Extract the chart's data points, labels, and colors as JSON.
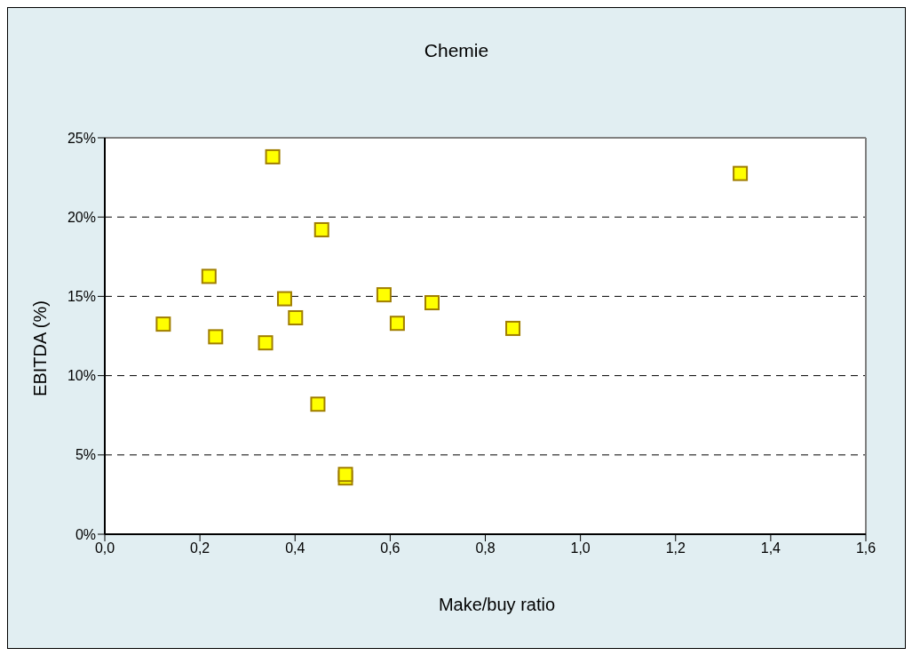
{
  "chart_data": {
    "type": "scatter",
    "title": "Chemie",
    "xlabel": "Make/buy ratio",
    "ylabel": "EBITDA (%)",
    "series": [
      {
        "color": "#ffff00",
        "x": [
          0.123,
          0.219,
          0.233,
          0.338,
          0.353,
          0.378,
          0.401,
          0.448,
          0.456,
          0.506,
          0.506,
          0.587,
          0.615,
          0.688,
          0.858,
          1.336
        ],
        "values": [
          13.25,
          16.26,
          12.45,
          12.07,
          23.8,
          14.85,
          13.65,
          8.2,
          19.2,
          3.55,
          3.77,
          15.1,
          13.3,
          14.6,
          12.98,
          22.75
        ]
      }
    ],
    "xlim": [
      0,
      1.6
    ],
    "xticks": [
      {
        "value": 0,
        "label": "0,0"
      },
      {
        "value": 0.2,
        "label": "0,2"
      },
      {
        "value": 0.4,
        "label": "0,4"
      },
      {
        "value": 0.6,
        "label": "0,6"
      },
      {
        "value": 0.8,
        "label": "0,8"
      },
      {
        "value": 1,
        "label": "1,0"
      },
      {
        "value": 1.2,
        "label": "1,2"
      },
      {
        "value": 1.4,
        "label": "1,4"
      },
      {
        "value": 1.6,
        "label": "1,6"
      }
    ],
    "ylim": [
      0,
      25
    ],
    "yticks": [
      {
        "value": 0,
        "label": "0%"
      },
      {
        "value": 5,
        "label": "5%"
      },
      {
        "value": 10,
        "label": "10%"
      },
      {
        "value": 15,
        "label": "15%"
      },
      {
        "value": 20,
        "label": "20%"
      },
      {
        "value": 25,
        "label": "25%"
      }
    ],
    "grid": "y",
    "legend": false,
    "marker": "square"
  }
}
